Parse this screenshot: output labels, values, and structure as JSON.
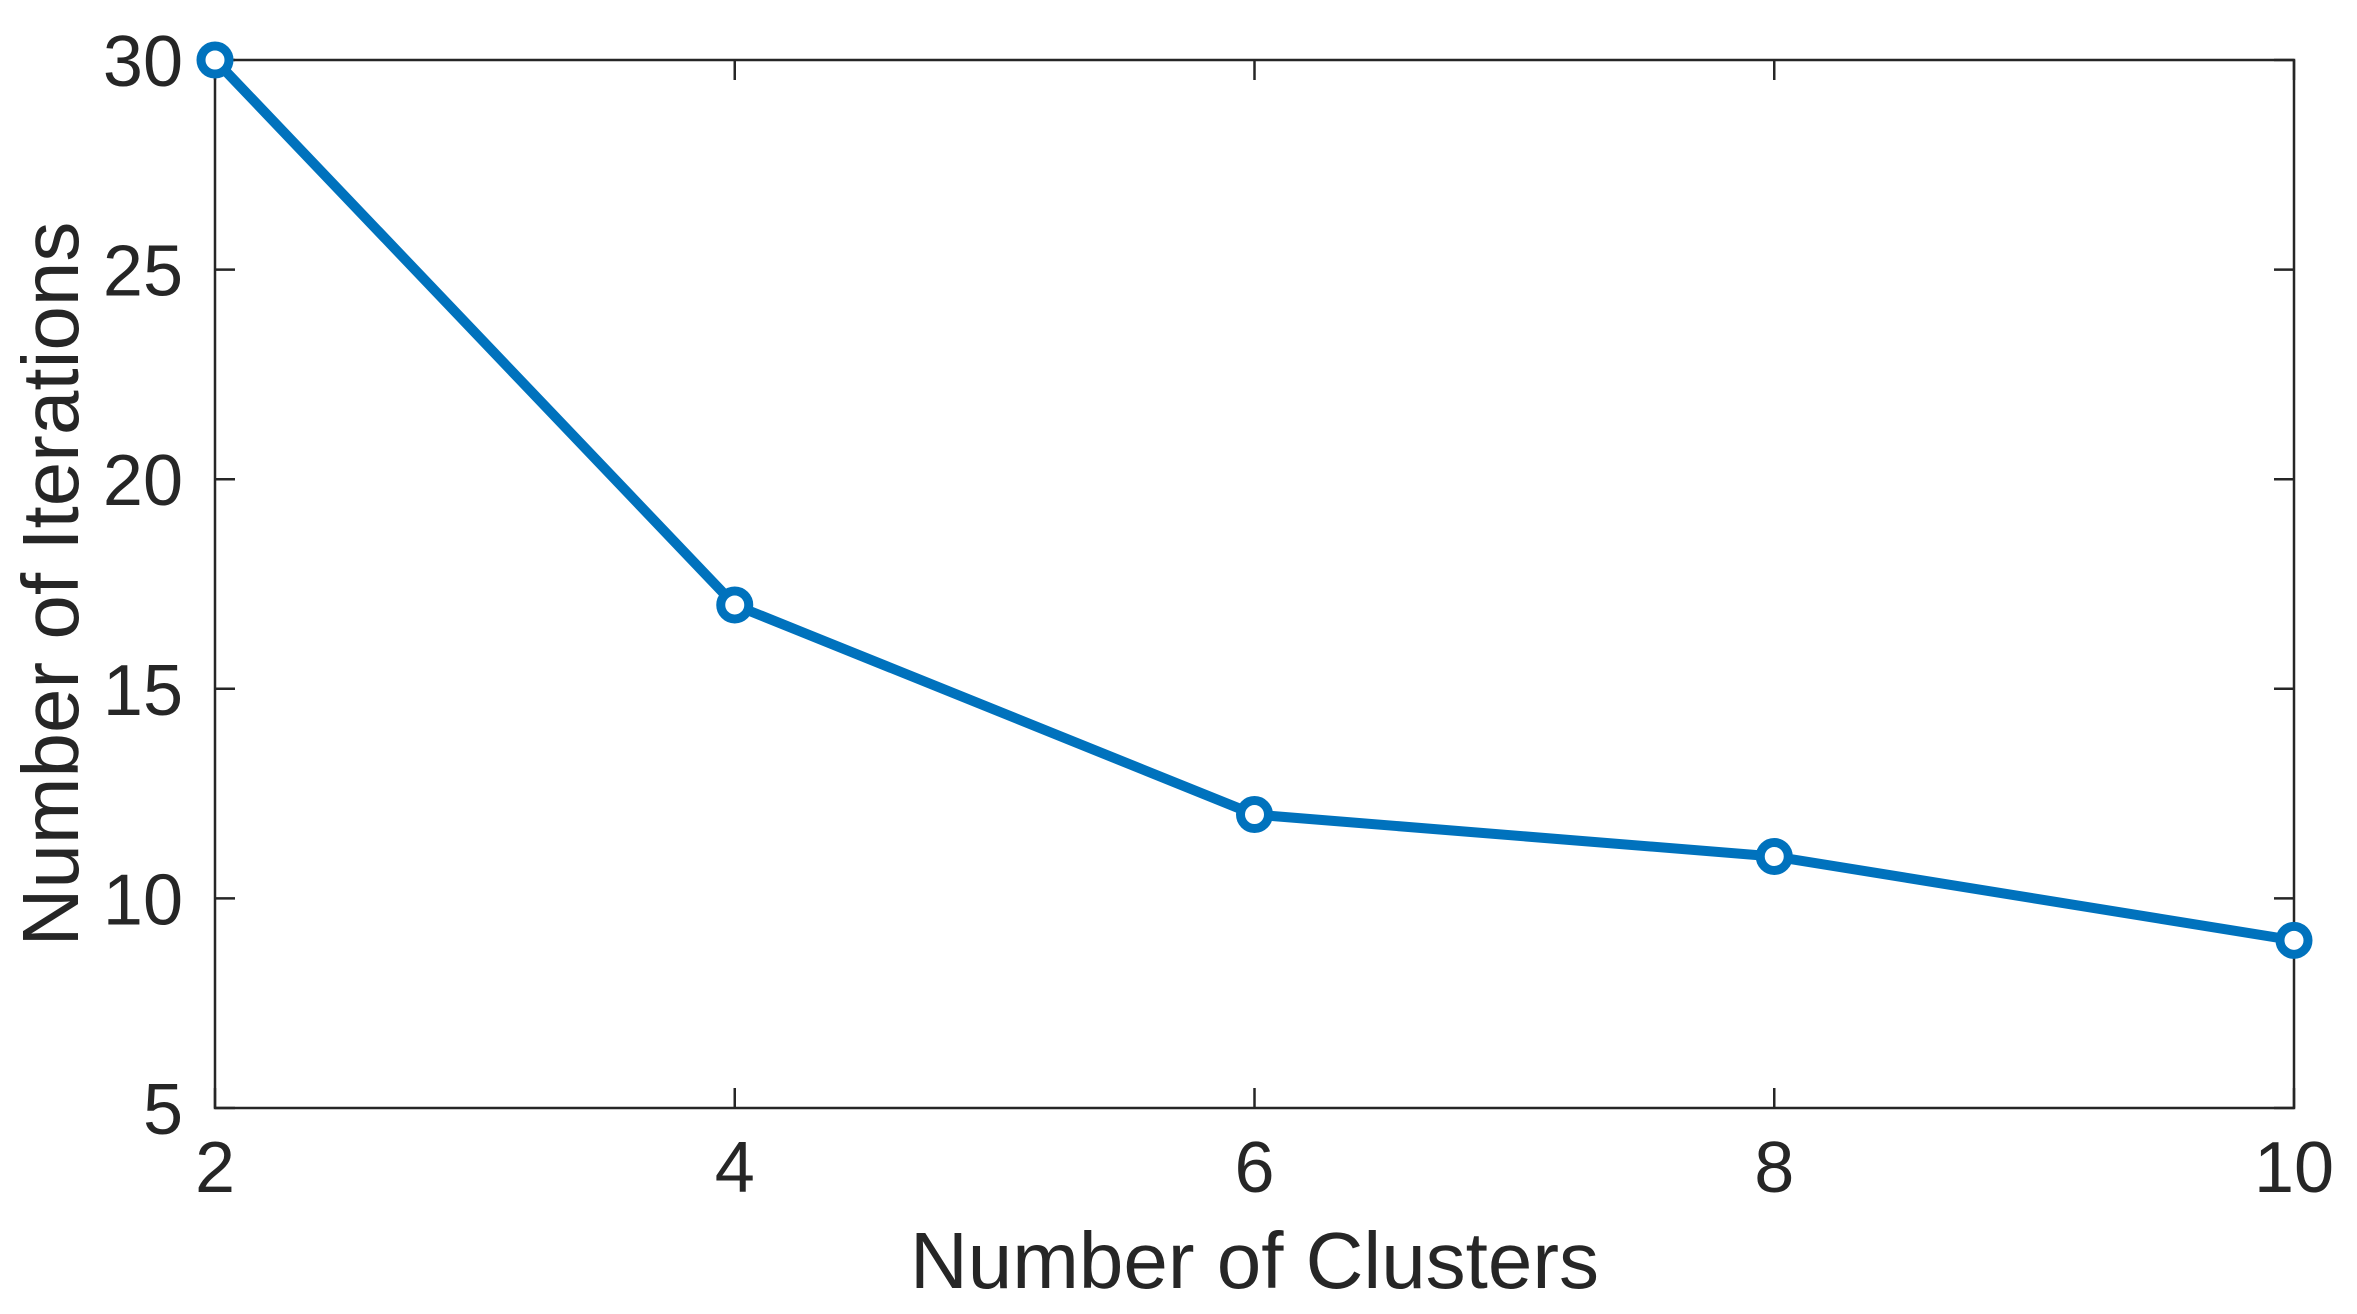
{
  "figure": {
    "background_color": "#ffffff"
  },
  "chart_data": {
    "type": "line",
    "title": "",
    "xlabel": "Number of Clusters",
    "ylabel": "Number of Iterations",
    "series": [
      {
        "name": "iterations-vs-clusters",
        "x": [
          2,
          4,
          6,
          8,
          10
        ],
        "y": [
          30,
          17,
          12,
          11,
          9
        ]
      }
    ],
    "xlim": [
      2,
      10
    ],
    "ylim": [
      5,
      30
    ],
    "xticks": [
      2,
      4,
      6,
      8,
      10
    ],
    "yticks": [
      5,
      10,
      15,
      20,
      25,
      30
    ],
    "grid": false,
    "legend": null,
    "box": true,
    "tick_direction": "in",
    "line_color": "#0072BD",
    "axis_color": "#262626",
    "marker": "open-circle",
    "marker_fill": "#ffffff"
  }
}
